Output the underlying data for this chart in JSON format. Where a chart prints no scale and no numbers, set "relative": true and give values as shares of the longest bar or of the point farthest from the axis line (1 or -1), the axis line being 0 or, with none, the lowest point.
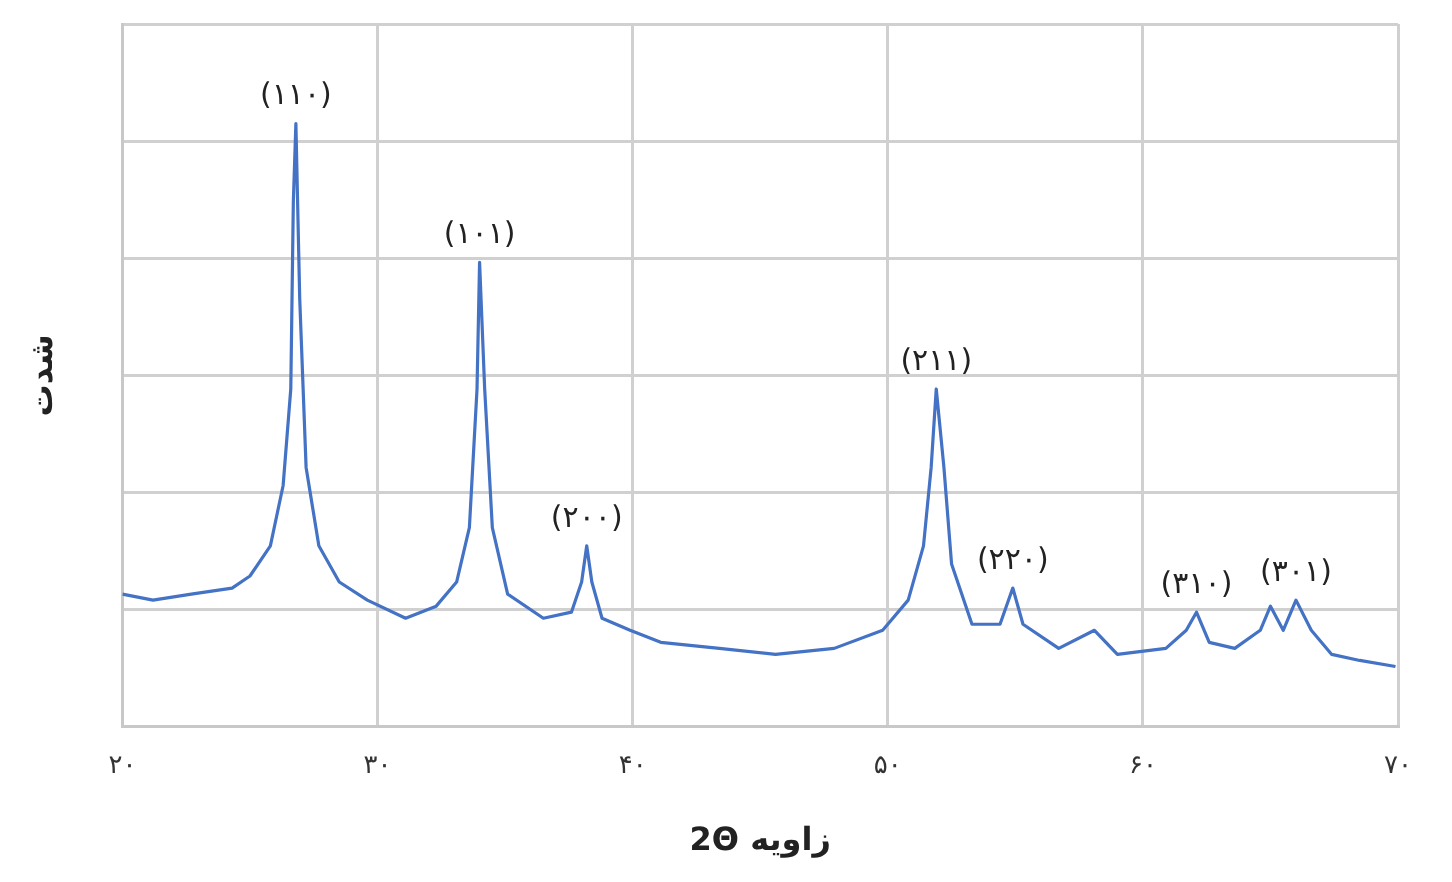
{
  "chart_data": {
    "type": "line",
    "xlabel": "زاویه 2Θ",
    "ylabel": "شدت",
    "relative": true,
    "grid": true,
    "legend": false,
    "marker": "none",
    "line_style": "solid",
    "xlim": [
      20,
      70
    ],
    "xticks": [
      {
        "value": 20,
        "label": "۲۰"
      },
      {
        "value": 30,
        "label": "۳۰"
      },
      {
        "value": 40,
        "label": "۴۰"
      },
      {
        "value": 50,
        "label": "۵۰"
      },
      {
        "value": 60,
        "label": "۶۰"
      },
      {
        "value": 70,
        "label": "۷۰"
      }
    ],
    "x": [
      20,
      21.2,
      22.7,
      24.3,
      25.0,
      25.8,
      26.3,
      26.6,
      26.7,
      26.8,
      26.95,
      27.2,
      27.7,
      28.5,
      29.6,
      31.1,
      32.3,
      33.1,
      33.6,
      33.9,
      34.0,
      34.2,
      34.5,
      35.1,
      36.5,
      37.6,
      38.0,
      38.2,
      38.4,
      38.8,
      39.9,
      41.1,
      43.4,
      45.6,
      47.9,
      49.8,
      50.8,
      51.4,
      51.7,
      51.9,
      52.2,
      52.5,
      53.3,
      54.4,
      54.9,
      55.3,
      56.7,
      58.1,
      59.0,
      60.9,
      61.7,
      62.1,
      62.6,
      63.6,
      64.6,
      65.0,
      65.5,
      66.0,
      66.6,
      67.4,
      68.5,
      69.9
    ],
    "series": [
      {
        "color": "#4472c4",
        "values": [
          0.22,
          0.21,
          0.22,
          0.23,
          0.25,
          0.3,
          0.4,
          0.56,
          0.87,
          1.0,
          0.71,
          0.43,
          0.3,
          0.24,
          0.21,
          0.18,
          0.2,
          0.24,
          0.33,
          0.56,
          0.77,
          0.56,
          0.33,
          0.22,
          0.18,
          0.19,
          0.24,
          0.3,
          0.24,
          0.18,
          0.16,
          0.14,
          0.13,
          0.12,
          0.13,
          0.16,
          0.21,
          0.3,
          0.43,
          0.56,
          0.43,
          0.27,
          0.17,
          0.17,
          0.23,
          0.17,
          0.13,
          0.16,
          0.12,
          0.13,
          0.16,
          0.19,
          0.14,
          0.13,
          0.16,
          0.2,
          0.16,
          0.21,
          0.16,
          0.12,
          0.11,
          0.1
        ]
      }
    ],
    "annotations": [
      {
        "text": "(۱۱۰)",
        "x": 26.8,
        "y": 1.0
      },
      {
        "text": "(۱۰۱)",
        "x": 34.0,
        "y": 0.77
      },
      {
        "text": "(۲۰۰)",
        "x": 38.2,
        "y": 0.3
      },
      {
        "text": "(۲۱۱)",
        "x": 51.9,
        "y": 0.56
      },
      {
        "text": "(۲۲۰)",
        "x": 54.9,
        "y": 0.23
      },
      {
        "text": "(۳۱۰)",
        "x": 62.1,
        "y": 0.19
      },
      {
        "text": "(۳۰۱)",
        "x": 66.0,
        "y": 0.21
      }
    ]
  }
}
